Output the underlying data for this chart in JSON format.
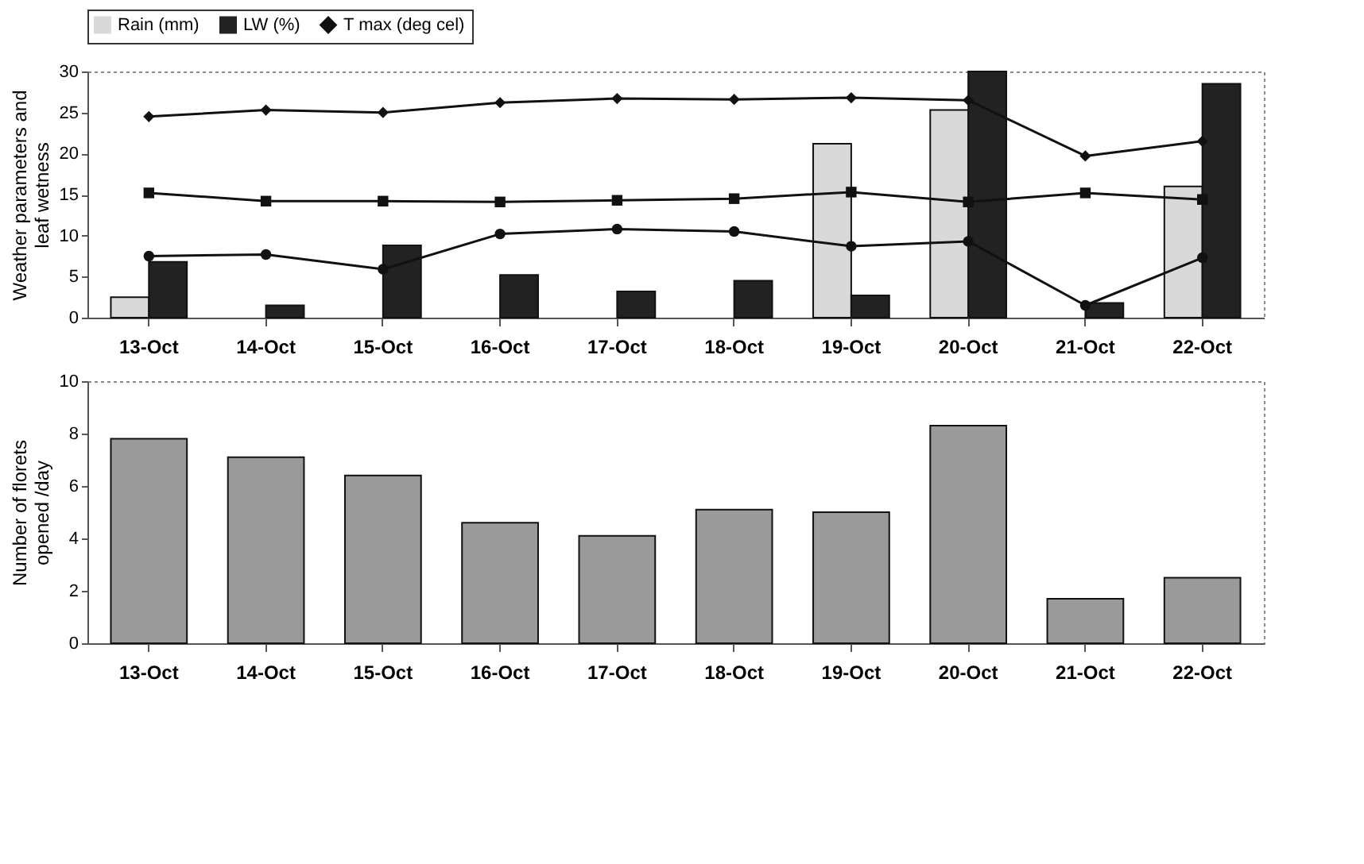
{
  "chart_data": [
    {
      "type": "bar",
      "categories": [
        "13-Oct",
        "14-Oct",
        "15-Oct",
        "16-Oct",
        "17-Oct",
        "18-Oct",
        "19-Oct",
        "20-Oct",
        "21-Oct",
        "22-Oct"
      ],
      "ylabel": "Weather parameters and leaf wetness",
      "ylim": [
        0,
        30
      ],
      "yticks": [
        0,
        5,
        10,
        15,
        20,
        25,
        30
      ],
      "legend": "top",
      "series": [
        {
          "name": "Rain (mm)",
          "color": "#d9d9d9",
          "values": [
            2.5,
            0,
            0,
            0,
            0,
            0,
            21.2,
            25.3,
            0,
            16
          ]
        },
        {
          "name": "LW (%)",
          "color": "#222222",
          "values": [
            6.8,
            1.5,
            8.8,
            5.2,
            3.2,
            4.5,
            2.7,
            30,
            1.8,
            28.5
          ]
        },
        {
          "name": "T max (deg cel)",
          "type": "line",
          "marker": "diamond",
          "color": "#111111",
          "values": [
            24.5,
            25.3,
            25,
            26.2,
            26.7,
            26.6,
            26.8,
            26.5,
            19.7,
            21.5
          ]
        },
        {
          "type": "line",
          "marker": "square",
          "color": "#111111",
          "values": [
            15.2,
            14.2,
            14.2,
            14.1,
            14.3,
            14.5,
            15.3,
            14.1,
            15.2,
            14.4
          ]
        },
        {
          "type": "line",
          "marker": "circle",
          "color": "#111111",
          "values": [
            7.5,
            7.7,
            5.9,
            10.2,
            10.8,
            10.5,
            8.7,
            9.3,
            1.5,
            7.3
          ]
        }
      ]
    },
    {
      "type": "bar",
      "categories": [
        "13-Oct",
        "14-Oct",
        "15-Oct",
        "16-Oct",
        "17-Oct",
        "18-Oct",
        "19-Oct",
        "20-Oct",
        "21-Oct",
        "22-Oct"
      ],
      "ylabel": "Number of florets opened /day",
      "ylim": [
        0,
        10
      ],
      "yticks": [
        0,
        2,
        4,
        6,
        8,
        10
      ],
      "series": [
        {
          "color": "#9a9a9a",
          "values": [
            7.8,
            7.1,
            6.4,
            4.6,
            4.1,
            5.1,
            5.0,
            8.3,
            1.7,
            2.5
          ]
        }
      ]
    }
  ]
}
